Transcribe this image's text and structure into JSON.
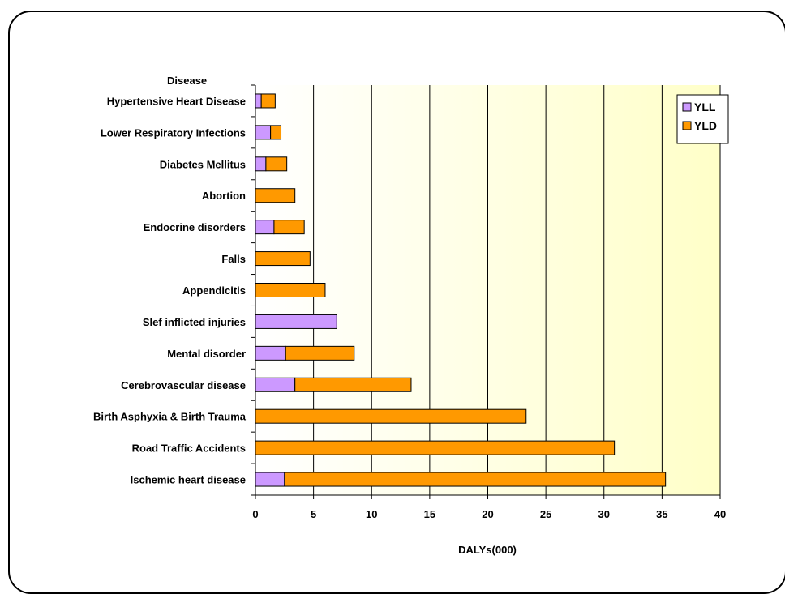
{
  "chart_data": {
    "type": "bar",
    "orientation": "horizontal",
    "stacked": true,
    "ylabel": "Disease",
    "xlabel": "DALYs(000)",
    "xlim": [
      0,
      40
    ],
    "xticks": [
      0,
      5,
      10,
      15,
      20,
      25,
      30,
      35,
      40
    ],
    "grid": true,
    "legend_position": "top-right",
    "categories": [
      "Hypertensive Heart Disease",
      "Lower Respiratory Infections",
      "Diabetes Mellitus",
      "Abortion",
      "Endocrine disorders",
      "Falls",
      "Appendicitis",
      "Slef inflicted injuries",
      "Mental disorder",
      "Cerebrovascular disease",
      "Birth Asphyxia & Birth Trauma",
      "Road Traffic Accidents",
      "Ischemic heart disease"
    ],
    "series": [
      {
        "name": "YLL",
        "color": "#cc99ff",
        "values": [
          0.5,
          1.3,
          0.9,
          0,
          1.6,
          0,
          0,
          7.0,
          2.6,
          3.4,
          0,
          0,
          2.5
        ]
      },
      {
        "name": "YLD",
        "color": "#ff9900",
        "values": [
          1.2,
          0.9,
          1.8,
          3.4,
          2.6,
          4.7,
          6.0,
          0,
          5.9,
          10.0,
          23.3,
          30.9,
          32.8
        ]
      }
    ]
  }
}
